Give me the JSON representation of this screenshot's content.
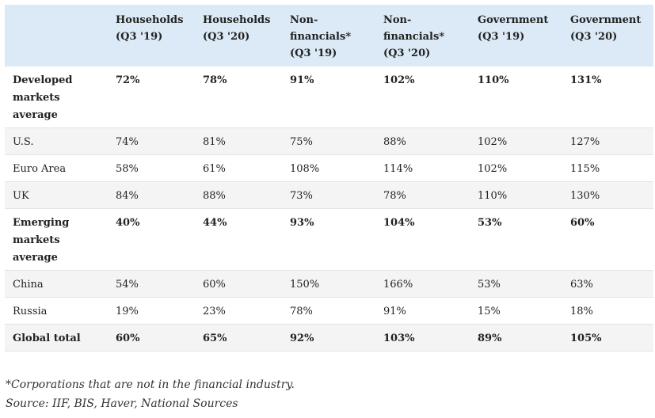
{
  "chart_data": {
    "type": "table",
    "columns": [
      "",
      "Households\n(Q3 '19)",
      "Households\n(Q3 '20)",
      "Non-\nfinancials*\n(Q3 '19)",
      "Non-\nfinancials*\n(Q3 '20)",
      "Government\n(Q3 '19)",
      "Government\n(Q3 '20)"
    ],
    "rows": [
      {
        "label": "Developed markets average",
        "values": [
          "72%",
          "78%",
          "91%",
          "102%",
          "110%",
          "131%"
        ],
        "bold": true
      },
      {
        "label": "U.S.",
        "values": [
          "74%",
          "81%",
          "75%",
          "88%",
          "102%",
          "127%"
        ],
        "bold": false
      },
      {
        "label": "Euro Area",
        "values": [
          "58%",
          "61%",
          "108%",
          "114%",
          "102%",
          "115%"
        ],
        "bold": false
      },
      {
        "label": "UK",
        "values": [
          "84%",
          "88%",
          "73%",
          "78%",
          "110%",
          "130%"
        ],
        "bold": false
      },
      {
        "label": "Emerging markets average",
        "values": [
          "40%",
          "44%",
          "93%",
          "104%",
          "53%",
          "60%"
        ],
        "bold": true
      },
      {
        "label": "China",
        "values": [
          "54%",
          "60%",
          "150%",
          "166%",
          "53%",
          "63%"
        ],
        "bold": false
      },
      {
        "label": "Russia",
        "values": [
          "19%",
          "23%",
          "78%",
          "91%",
          "15%",
          "18%"
        ],
        "bold": false
      },
      {
        "label": "Global total",
        "values": [
          "60%",
          "65%",
          "92%",
          "103%",
          "89%",
          "105%"
        ],
        "bold": true
      }
    ]
  },
  "notes": {
    "footnote": "*Corporations that are not in the financial industry.",
    "source": "Source: IIF, BIS, Haver, National Sources"
  },
  "colors": {
    "header_background": "#dbeaf6",
    "alternate_row_background": "#f4f4f4",
    "text": "#222222"
  }
}
